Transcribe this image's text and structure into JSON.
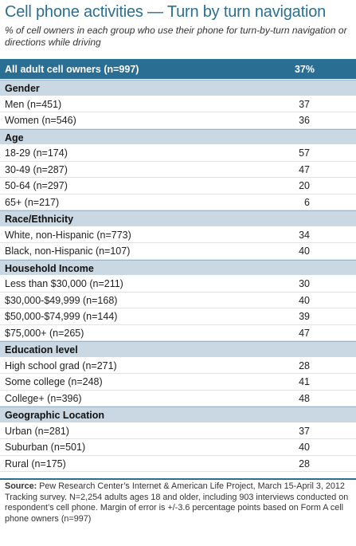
{
  "title": "Cell phone activities — Turn by turn navigation",
  "subtitle": "% of cell owners in each group who use their phone  for turn-by-turn navigation or directions while driving",
  "total": {
    "label": "All adult cell owners (n=997)",
    "value": "37%"
  },
  "groups": [
    {
      "header": "Gender",
      "rows": [
        {
          "label": "Men (n=451)",
          "value": "37"
        },
        {
          "label": "Women (n=546)",
          "value": "36"
        }
      ]
    },
    {
      "header": "Age",
      "rows": [
        {
          "label": "18-29 (n=174)",
          "value": "57"
        },
        {
          "label": "30-49 (n=287)",
          "value": "47"
        },
        {
          "label": "50-64 (n=297)",
          "value": "20"
        },
        {
          "label": "65+ (n=217)",
          "value": "6"
        }
      ]
    },
    {
      "header": "Race/Ethnicity",
      "rows": [
        {
          "label": "White, non-Hispanic (n=773)",
          "value": "34"
        },
        {
          "label": "Black, non-Hispanic (n=107)",
          "value": "40"
        }
      ]
    },
    {
      "header": "Household Income",
      "rows": [
        {
          "label": "Less than $30,000 (n=211)",
          "value": "30"
        },
        {
          "label": "$30,000-$49,999 (n=168)",
          "value": "40"
        },
        {
          "label": "$50,000-$74,999 (n=144)",
          "value": "39"
        },
        {
          "label": "$75,000+ (n=265)",
          "value": "47"
        }
      ]
    },
    {
      "header": "Education level",
      "rows": [
        {
          "label": "High school grad (n=271)",
          "value": "28"
        },
        {
          "label": "Some college (n=248)",
          "value": "41"
        },
        {
          "label": "College+ (n=396)",
          "value": "48"
        }
      ]
    },
    {
      "header": "Geographic Location",
      "rows": [
        {
          "label": "Urban (n=281)",
          "value": "37"
        },
        {
          "label": "Suburban (n=501)",
          "value": "40"
        },
        {
          "label": "Rural (n=175)",
          "value": "28"
        }
      ]
    }
  ],
  "source": {
    "prefix": "Source:",
    "text": " Pew Research Center’s Internet & American Life Project, March 15-April 3, 2012 Tracking survey. N=2,254 adults ages 18 and older, including 903 interviews conducted on respondent’s cell phone. Margin of error is +/-3.6 percentage points based on Form A cell phone owners (n=997)"
  },
  "colors": {
    "title": "#2b6f93",
    "total_bg": "#2a6e94",
    "header_bg": "#c9d8e3"
  }
}
